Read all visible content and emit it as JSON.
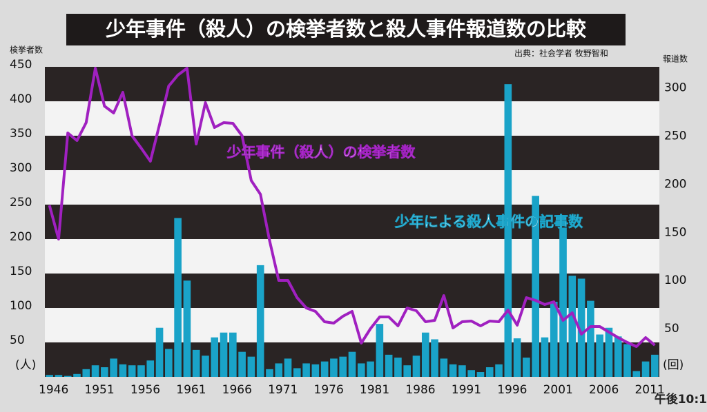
{
  "chart_data": {
    "type": "bar_line",
    "title": "少年事件（殺人）の検挙者数と殺人事件報道数の比較",
    "subtitle": "出典：社会学者 牧野智和",
    "y_label": "検挙者数",
    "y2_label": "報道数",
    "y_unit": "(人)",
    "y2_unit": "(回)",
    "timestamp": "午後10:1",
    "x": [
      1946,
      1947,
      1948,
      1949,
      1950,
      1951,
      1952,
      1953,
      1954,
      1955,
      1956,
      1957,
      1958,
      1959,
      1960,
      1961,
      1962,
      1963,
      1964,
      1965,
      1966,
      1967,
      1968,
      1969,
      1970,
      1971,
      1972,
      1973,
      1974,
      1975,
      1976,
      1977,
      1978,
      1979,
      1980,
      1981,
      1982,
      1983,
      1984,
      1985,
      1986,
      1987,
      1988,
      1989,
      1990,
      1991,
      1992,
      1993,
      1994,
      1995,
      1996,
      1997,
      1998,
      1999,
      2000,
      2001,
      2002,
      2003,
      2004,
      2005,
      2006,
      2007,
      2008,
      2009,
      2010,
      2011,
      2012
    ],
    "xlim": [
      1945.5,
      2012.5
    ],
    "xticks": [
      1946,
      1951,
      1956,
      1961,
      1966,
      1971,
      1976,
      1981,
      1986,
      1991,
      1996,
      2001,
      2006,
      2011
    ],
    "ylim": [
      0,
      450
    ],
    "yticks": [
      50,
      100,
      150,
      200,
      250,
      300,
      350,
      400,
      450
    ],
    "y2lim": [
      0,
      322
    ],
    "y2ticks": [
      50,
      100,
      150,
      200,
      250,
      300
    ],
    "grid": "bands",
    "series": [
      {
        "name": "少年による殺人事件の記事数",
        "kind": "bar",
        "axis": "y2",
        "color": "#1aa3c8",
        "values": [
          2,
          2,
          1,
          3,
          8,
          12,
          10,
          19,
          13,
          12,
          12,
          17,
          51,
          29,
          165,
          100,
          28,
          22,
          41,
          46,
          46,
          26,
          21,
          116,
          8,
          14,
          19,
          9,
          14,
          13,
          16,
          19,
          21,
          26,
          14,
          16,
          55,
          23,
          20,
          12,
          22,
          46,
          39,
          19,
          13,
          12,
          7,
          5,
          10,
          13,
          304,
          40,
          20,
          188,
          41,
          78,
          155,
          105,
          102,
          79,
          44,
          51,
          42,
          34,
          6,
          16,
          23
        ]
      },
      {
        "name": "少年事件（殺人）の検挙者数",
        "kind": "line",
        "axis": "y",
        "color": "#a020c0",
        "values": [
          249,
          200,
          354,
          343,
          369,
          448,
          393,
          383,
          413,
          350,
          332,
          313,
          366,
          422,
          438,
          448,
          338,
          398,
          362,
          369,
          368,
          350,
          285,
          265,
          198,
          140,
          140,
          115,
          100,
          95,
          80,
          78,
          88,
          95,
          49,
          70,
          87,
          87,
          74,
          100,
          96,
          80,
          82,
          118,
          71,
          80,
          81,
          74,
          81,
          80,
          97,
          75,
          115,
          111,
          105,
          109,
          82,
          93,
          62,
          73,
          73,
          65,
          57,
          50,
          44,
          57,
          46
        ]
      }
    ]
  }
}
